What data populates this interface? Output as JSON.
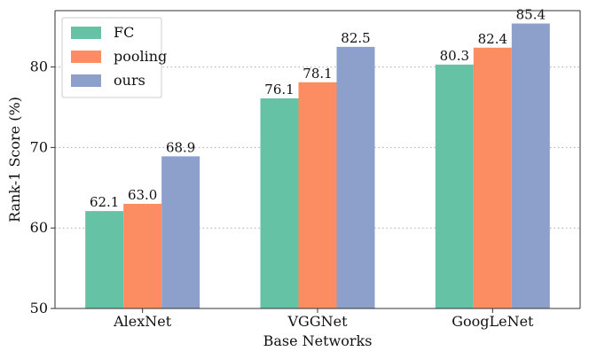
{
  "chart_data": {
    "type": "bar",
    "title": "",
    "xlabel": "Base Networks",
    "ylabel": "Rank-1 Score (%)",
    "ylim": [
      50,
      87
    ],
    "yticks": [
      50,
      60,
      70,
      80
    ],
    "grid": "horizontal dotted",
    "legend_position": "top-left",
    "categories": [
      "AlexNet",
      "VGGNet",
      "GoogLeNet"
    ],
    "series": [
      {
        "name": "FC",
        "color": "#66c2a5",
        "values": [
          62.1,
          76.1,
          80.3
        ],
        "labels": [
          "62.1",
          "76.1",
          "80.3"
        ]
      },
      {
        "name": "pooling",
        "color": "#fc8d62",
        "values": [
          63.0,
          78.1,
          82.4
        ],
        "labels": [
          "63.0",
          "78.1",
          "82.4"
        ]
      },
      {
        "name": "ours",
        "color": "#8da0cb",
        "values": [
          68.9,
          82.5,
          85.4
        ],
        "labels": [
          "68.9",
          "82.5",
          "85.4"
        ]
      }
    ]
  }
}
